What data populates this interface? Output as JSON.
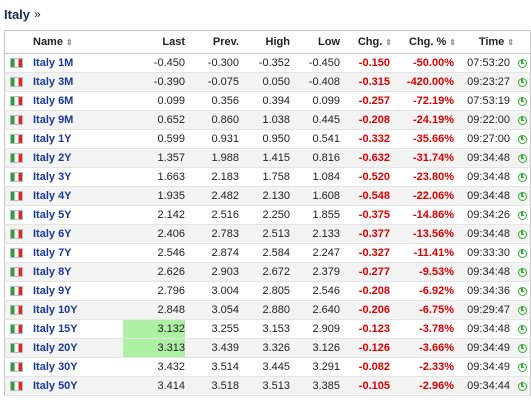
{
  "page": {
    "title": "Italy",
    "title_arrow": "»"
  },
  "headers": {
    "name": "Name",
    "last": "Last",
    "prev": "Prev.",
    "high": "High",
    "low": "Low",
    "chg": "Chg.",
    "chgp": "Chg. %",
    "time": "Time",
    "sort_glyph": "⇕"
  },
  "colors": {
    "negative": "#e00000",
    "highlight": "#aef0a4",
    "link": "#1a3a9a",
    "clock": "#2db32d"
  },
  "rows": [
    {
      "name": "Italy 1M",
      "last": "-0.450",
      "prev": "-0.300",
      "high": "-0.352",
      "low": "-0.450",
      "chg": "-0.150",
      "chgp": "-50.00%",
      "time": "07:53:20",
      "hl": false
    },
    {
      "name": "Italy 3M",
      "last": "-0.390",
      "prev": "-0.075",
      "high": "0.050",
      "low": "-0.408",
      "chg": "-0.315",
      "chgp": "-420.00%",
      "time": "09:23:27",
      "hl": false
    },
    {
      "name": "Italy 6M",
      "last": "0.099",
      "prev": "0.356",
      "high": "0.394",
      "low": "0.099",
      "chg": "-0.257",
      "chgp": "-72.19%",
      "time": "07:53:19",
      "hl": false
    },
    {
      "name": "Italy 9M",
      "last": "0.652",
      "prev": "0.860",
      "high": "1.038",
      "low": "0.445",
      "chg": "-0.208",
      "chgp": "-24.19%",
      "time": "09:22:00",
      "hl": false
    },
    {
      "name": "Italy 1Y",
      "last": "0.599",
      "prev": "0.931",
      "high": "0.950",
      "low": "0.541",
      "chg": "-0.332",
      "chgp": "-35.66%",
      "time": "09:27:00",
      "hl": false
    },
    {
      "name": "Italy 2Y",
      "last": "1.357",
      "prev": "1.988",
      "high": "1.415",
      "low": "0.816",
      "chg": "-0.632",
      "chgp": "-31.74%",
      "time": "09:34:48",
      "hl": false
    },
    {
      "name": "Italy 3Y",
      "last": "1.663",
      "prev": "2.183",
      "high": "1.758",
      "low": "1.084",
      "chg": "-0.520",
      "chgp": "-23.80%",
      "time": "09:34:48",
      "hl": false
    },
    {
      "name": "Italy 4Y",
      "last": "1.935",
      "prev": "2.482",
      "high": "2.130",
      "low": "1.608",
      "chg": "-0.548",
      "chgp": "-22.06%",
      "time": "09:34:48",
      "hl": false
    },
    {
      "name": "Italy 5Y",
      "last": "2.142",
      "prev": "2.516",
      "high": "2.250",
      "low": "1.855",
      "chg": "-0.375",
      "chgp": "-14.86%",
      "time": "09:34:26",
      "hl": false
    },
    {
      "name": "Italy 6Y",
      "last": "2.406",
      "prev": "2.783",
      "high": "2.513",
      "low": "2.133",
      "chg": "-0.377",
      "chgp": "-13.56%",
      "time": "09:34:48",
      "hl": false
    },
    {
      "name": "Italy 7Y",
      "last": "2.546",
      "prev": "2.874",
      "high": "2.584",
      "low": "2.247",
      "chg": "-0.327",
      "chgp": "-11.41%",
      "time": "09:33:30",
      "hl": false
    },
    {
      "name": "Italy 8Y",
      "last": "2.626",
      "prev": "2.903",
      "high": "2.672",
      "low": "2.379",
      "chg": "-0.277",
      "chgp": "-9.53%",
      "time": "09:34:48",
      "hl": false
    },
    {
      "name": "Italy 9Y",
      "last": "2.796",
      "prev": "3.004",
      "high": "2.805",
      "low": "2.546",
      "chg": "-0.208",
      "chgp": "-6.92%",
      "time": "09:34:36",
      "hl": false
    },
    {
      "name": "Italy 10Y",
      "last": "2.848",
      "prev": "3.054",
      "high": "2.880",
      "low": "2.640",
      "chg": "-0.206",
      "chgp": "-6.75%",
      "time": "09:29:47",
      "hl": false
    },
    {
      "name": "Italy 15Y",
      "last": "3.132",
      "prev": "3.255",
      "high": "3.153",
      "low": "2.909",
      "chg": "-0.123",
      "chgp": "-3.78%",
      "time": "09:34:48",
      "hl": true
    },
    {
      "name": "Italy 20Y",
      "last": "3.313",
      "prev": "3.439",
      "high": "3.326",
      "low": "3.126",
      "chg": "-0.126",
      "chgp": "-3.66%",
      "time": "09:34:49",
      "hl": true
    },
    {
      "name": "Italy 30Y",
      "last": "3.432",
      "prev": "3.514",
      "high": "3.445",
      "low": "3.291",
      "chg": "-0.082",
      "chgp": "-2.33%",
      "time": "09:34:49",
      "hl": false
    },
    {
      "name": "Italy 50Y",
      "last": "3.414",
      "prev": "3.518",
      "high": "3.513",
      "low": "3.385",
      "chg": "-0.105",
      "chgp": "-2.96%",
      "time": "09:34:44",
      "hl": false
    }
  ]
}
